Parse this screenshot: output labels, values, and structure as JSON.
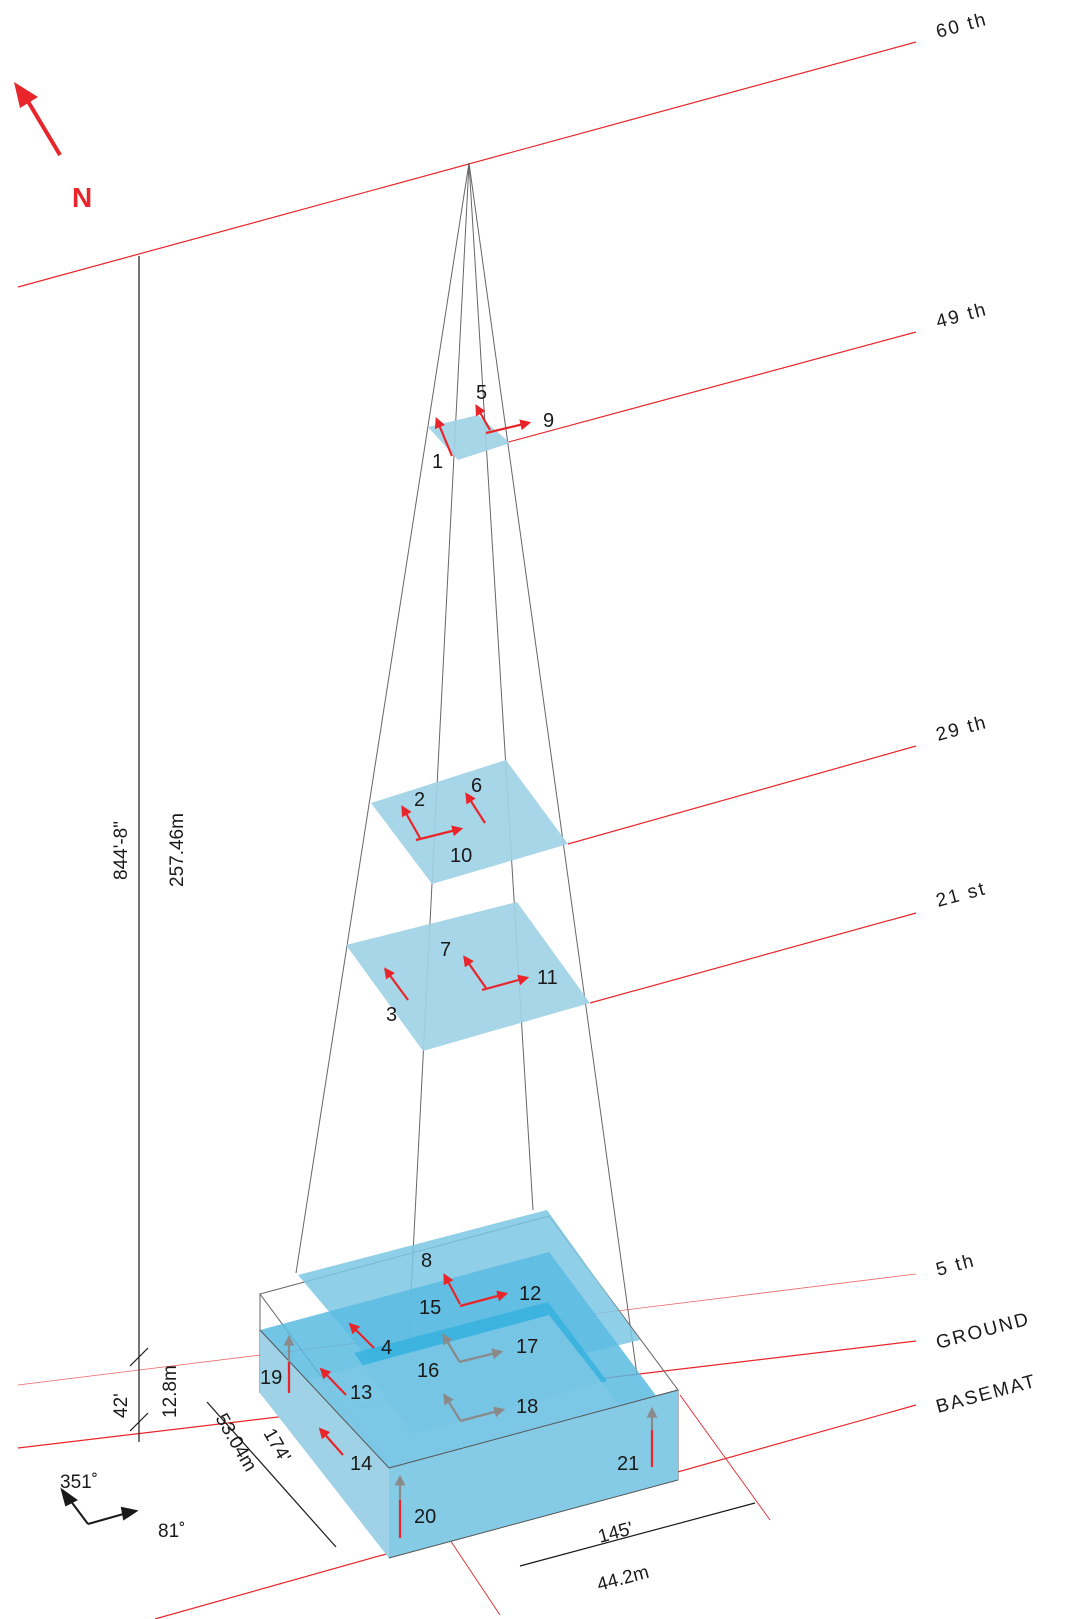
{
  "colors": {
    "red": "#e8252b",
    "gray_arrow": "#8a8a8a",
    "slab": "#9fd2e6",
    "slab_dark": "#3ab3df",
    "outline": "#666666"
  },
  "north": {
    "label": "N",
    "icon": "north-arrow-icon"
  },
  "levels": [
    {
      "id": "60",
      "label": "60 th"
    },
    {
      "id": "49",
      "label": "49 th"
    },
    {
      "id": "29",
      "label": "29 th"
    },
    {
      "id": "21",
      "label": "21 st"
    },
    {
      "id": "5",
      "label": "5 th"
    },
    {
      "id": "ground",
      "label": "GROUND"
    },
    {
      "id": "basemat",
      "label": "BASEMAT"
    }
  ],
  "dimensions": {
    "total_height_ft": "844'-8\"",
    "total_height_m": "257.46m",
    "base_height_ft": "42'",
    "base_height_m": "12.8m",
    "depth_ft": "174'",
    "depth_m": "53.04m",
    "width_ft": "145'",
    "width_m": "44.2m"
  },
  "compass": {
    "angle_a": "351˚",
    "angle_b": "81˚"
  },
  "arrow_labels": [
    "1",
    "2",
    "3",
    "4",
    "5",
    "6",
    "7",
    "8",
    "9",
    "10",
    "11",
    "12",
    "13",
    "14",
    "15",
    "16",
    "17",
    "18",
    "19",
    "20",
    "21"
  ]
}
